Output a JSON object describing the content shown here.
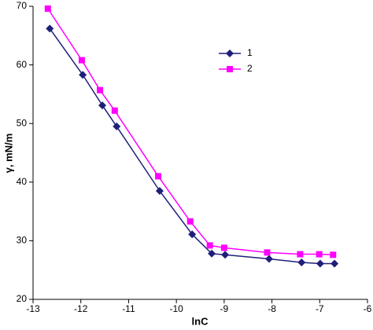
{
  "chart_data": {
    "type": "line",
    "x_label": "lnC",
    "y_label": "γ, mN/m",
    "xlim": [
      -13,
      -6
    ],
    "xticks": [
      -13,
      -12,
      -11,
      -10,
      -9,
      -8,
      -7,
      -6
    ],
    "ylim": [
      20,
      70
    ],
    "yticks": [
      20,
      30,
      40,
      50,
      60,
      70
    ],
    "grid": false,
    "legend": "top-right",
    "series": [
      {
        "name": "1",
        "color": "#1f1f7a",
        "marker": "diamond",
        "x": [
          -12.65,
          -11.96,
          -11.55,
          -11.25,
          -10.35,
          -9.67,
          -9.26,
          -8.98,
          -8.06,
          -7.38,
          -6.99,
          -6.69
        ],
        "values": [
          66.2,
          58.3,
          53.1,
          49.5,
          38.5,
          31.1,
          27.8,
          27.6,
          26.9,
          26.3,
          26.1,
          26.1
        ]
      },
      {
        "name": "2",
        "color": "#ff00ff",
        "marker": "square",
        "x": [
          -12.69,
          -11.98,
          -11.6,
          -11.29,
          -10.38,
          -9.71,
          -9.3,
          -9.0,
          -8.1,
          -7.41,
          -7.01,
          -6.72
        ],
        "values": [
          69.6,
          60.8,
          55.7,
          52.2,
          41.0,
          33.3,
          29.2,
          28.8,
          28.0,
          27.7,
          27.7,
          27.6
        ]
      }
    ]
  }
}
